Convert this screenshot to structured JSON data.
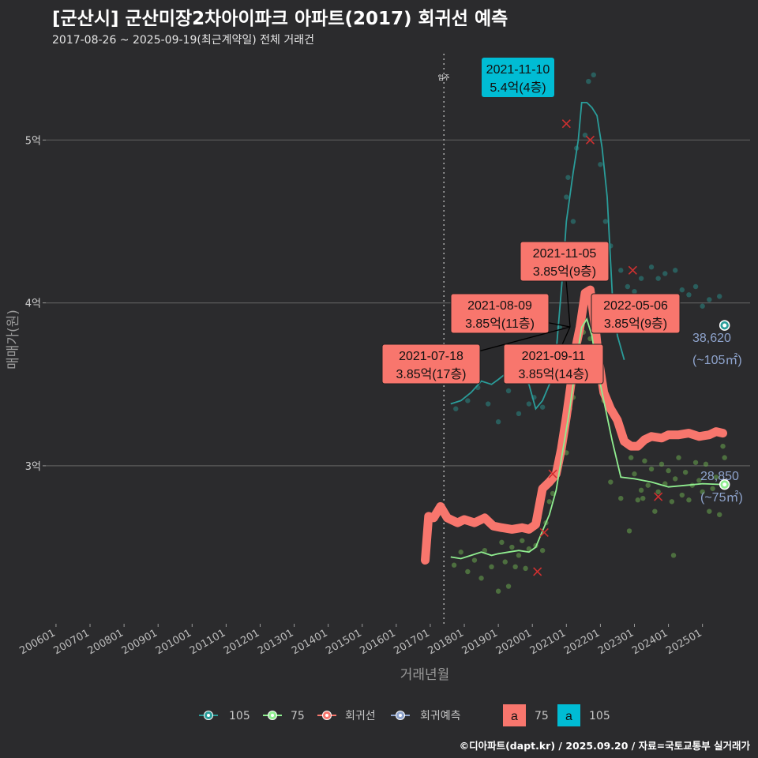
{
  "header": {
    "title": "[군산시] 군산미장2차아이파크 아파트(2017) 회귀선 예측",
    "subtitle": "2017-08-26 ~ 2025-09-19(최근계약일) 전체 거래건"
  },
  "caption": "©디아파트(dapt.kr) / 2025.09.20 / 자료=국토교통부 실거래가",
  "chart_data": {
    "type": "line",
    "title": "[군산시] 군산미장2차아이파크 아파트(2017) 회귀선 예측",
    "subtitle": "2017-08-26 ~ 2025-09-19(최근계약일) 전체 거래건",
    "xlabel": "거래년월",
    "ylabel": "매매가(원)",
    "x_range": [
      2005.7,
      2026.4
    ],
    "y_range": [
      20300,
      55300
    ],
    "y_ticks": [
      {
        "value": 30000,
        "label": "3억"
      },
      {
        "value": 40000,
        "label": "4억"
      },
      {
        "value": 50000,
        "label": "5억"
      }
    ],
    "x_ticks": [
      {
        "value": 2006.0,
        "label": "200601"
      },
      {
        "value": 2007.0,
        "label": "200701"
      },
      {
        "value": 2008.0,
        "label": "200801"
      },
      {
        "value": 2009.0,
        "label": "200901"
      },
      {
        "value": 2010.0,
        "label": "201001"
      },
      {
        "value": 2011.0,
        "label": "201101"
      },
      {
        "value": 2012.0,
        "label": "201201"
      },
      {
        "value": 2013.0,
        "label": "201301"
      },
      {
        "value": 2014.0,
        "label": "201401"
      },
      {
        "value": 2015.0,
        "label": "201501"
      },
      {
        "value": 2016.0,
        "label": "201601"
      },
      {
        "value": 2017.0,
        "label": "201701"
      },
      {
        "value": 2018.0,
        "label": "201801"
      },
      {
        "value": 2019.0,
        "label": "201901"
      },
      {
        "value": 2020.0,
        "label": "202001"
      },
      {
        "value": 2021.0,
        "label": "202101"
      },
      {
        "value": 2022.0,
        "label": "202201"
      },
      {
        "value": 2023.0,
        "label": "202301"
      },
      {
        "value": 2024.0,
        "label": "202401"
      },
      {
        "value": 2025.0,
        "label": "202501"
      }
    ],
    "vline": {
      "x": 2017.4,
      "label": "입주"
    },
    "grid": true,
    "legend_position": "bottom",
    "colors": {
      "105": "#2a9d9a",
      "75": "#90ee90",
      "regression": "#f8766d",
      "forecast": "#8ea3cc",
      "max_box": "#00bcd4",
      "bg": "#2b2b2d"
    },
    "legend": [
      {
        "key": "105",
        "label": "105",
        "color": "#2a9d9a"
      },
      {
        "key": "75",
        "label": "75",
        "color": "#90ee90"
      },
      {
        "key": "reg",
        "label": "회귀선",
        "color": "#f8766d"
      },
      {
        "key": "fc",
        "label": "회귀예측",
        "color": "#8ea3cc"
      }
    ],
    "legend_boxes": [
      {
        "letter": "a",
        "label": "75",
        "color": "#f8766d"
      },
      {
        "letter": "a",
        "label": "105",
        "color": "#00bcd4"
      }
    ],
    "series": [
      {
        "name": "105",
        "color": "#2a9d9a",
        "points": [
          [
            2017.6,
            33800
          ],
          [
            2017.9,
            34000
          ],
          [
            2018.2,
            34500
          ],
          [
            2018.5,
            35200
          ],
          [
            2018.8,
            35000
          ],
          [
            2019.0,
            35300
          ],
          [
            2019.3,
            35800
          ],
          [
            2019.6,
            35500
          ],
          [
            2019.9,
            35000
          ],
          [
            2020.1,
            33500
          ],
          [
            2020.3,
            34000
          ],
          [
            2020.5,
            35000
          ],
          [
            2020.7,
            37000
          ],
          [
            2020.9,
            42000
          ],
          [
            2021.0,
            45000
          ],
          [
            2021.2,
            48000
          ],
          [
            2021.35,
            50000
          ],
          [
            2021.45,
            52300
          ],
          [
            2021.6,
            52300
          ],
          [
            2021.75,
            52000
          ],
          [
            2021.9,
            51500
          ],
          [
            2022.05,
            49500
          ],
          [
            2022.2,
            46500
          ],
          [
            2022.35,
            40500
          ],
          [
            2022.5,
            38000
          ],
          [
            2022.7,
            36500
          ]
        ]
      },
      {
        "name": "75",
        "color": "#90ee90",
        "points": [
          [
            2017.6,
            24400
          ],
          [
            2017.9,
            24300
          ],
          [
            2018.2,
            24500
          ],
          [
            2018.5,
            24700
          ],
          [
            2018.8,
            24500
          ],
          [
            2019.0,
            24600
          ],
          [
            2019.3,
            24700
          ],
          [
            2019.6,
            24800
          ],
          [
            2019.9,
            24700
          ],
          [
            2020.1,
            25000
          ],
          [
            2020.3,
            26000
          ],
          [
            2020.5,
            27000
          ],
          [
            2020.7,
            28500
          ],
          [
            2020.9,
            31000
          ],
          [
            2021.1,
            33500
          ],
          [
            2021.3,
            36500
          ],
          [
            2021.45,
            38500
          ],
          [
            2021.6,
            39000
          ],
          [
            2021.75,
            38000
          ],
          [
            2021.9,
            36000
          ],
          [
            2022.1,
            34000
          ],
          [
            2022.35,
            31500
          ],
          [
            2022.6,
            29300
          ],
          [
            2023.0,
            29200
          ],
          [
            2023.5,
            29000
          ],
          [
            2024.0,
            28700
          ],
          [
            2024.5,
            28800
          ],
          [
            2025.0,
            28900
          ],
          [
            2025.6,
            28850
          ]
        ]
      },
      {
        "name": "회귀선",
        "color": "#f8766d",
        "points": [
          [
            2016.85,
            24200
          ],
          [
            2016.95,
            26900
          ],
          [
            2017.1,
            26800
          ],
          [
            2017.3,
            27500
          ],
          [
            2017.5,
            26800
          ],
          [
            2017.8,
            26500
          ],
          [
            2018.0,
            26700
          ],
          [
            2018.3,
            26500
          ],
          [
            2018.6,
            26800
          ],
          [
            2018.85,
            26300
          ],
          [
            2019.1,
            26200
          ],
          [
            2019.4,
            26100
          ],
          [
            2019.7,
            26200
          ],
          [
            2019.9,
            26100
          ],
          [
            2020.1,
            26400
          ],
          [
            2020.3,
            28600
          ],
          [
            2020.5,
            29000
          ],
          [
            2020.7,
            29500
          ],
          [
            2020.85,
            31000
          ],
          [
            2021.0,
            33000
          ],
          [
            2021.1,
            34500
          ],
          [
            2021.2,
            36000
          ],
          [
            2021.3,
            37500
          ],
          [
            2021.4,
            38500
          ],
          [
            2021.55,
            40600
          ],
          [
            2021.7,
            40800
          ],
          [
            2021.85,
            38500
          ],
          [
            2021.95,
            36500
          ],
          [
            2022.1,
            34500
          ],
          [
            2022.3,
            33500
          ],
          [
            2022.5,
            32800
          ],
          [
            2022.7,
            31500
          ],
          [
            2022.9,
            31200
          ],
          [
            2023.1,
            31200
          ],
          [
            2023.3,
            31600
          ],
          [
            2023.5,
            31800
          ],
          [
            2023.8,
            31700
          ],
          [
            2024.0,
            31900
          ],
          [
            2024.3,
            31900
          ],
          [
            2024.6,
            32000
          ],
          [
            2024.9,
            31800
          ],
          [
            2025.2,
            31900
          ],
          [
            2025.4,
            32100
          ],
          [
            2025.6,
            32000
          ]
        ]
      }
    ],
    "scatter_105": [
      [
        2017.75,
        33500
      ],
      [
        2018.1,
        34000
      ],
      [
        2018.4,
        34800
      ],
      [
        2018.7,
        33800
      ],
      [
        2019.0,
        32700
      ],
      [
        2019.3,
        34600
      ],
      [
        2019.6,
        33200
      ],
      [
        2019.9,
        33800
      ],
      [
        2020.05,
        34200
      ],
      [
        2020.3,
        33600
      ],
      [
        2020.5,
        35500
      ],
      [
        2020.8,
        38500
      ],
      [
        2020.9,
        41500
      ],
      [
        2020.95,
        43000
      ],
      [
        2021.0,
        46500
      ],
      [
        2021.05,
        47700
      ],
      [
        2021.2,
        45000
      ],
      [
        2021.3,
        49500
      ],
      [
        2021.55,
        50300
      ],
      [
        2021.65,
        53600
      ],
      [
        2021.8,
        54000
      ],
      [
        2022.0,
        48500
      ],
      [
        2022.15,
        45000
      ],
      [
        2022.3,
        43500
      ],
      [
        2022.6,
        42000
      ],
      [
        2022.8,
        41000
      ],
      [
        2023.0,
        40700
      ],
      [
        2023.2,
        41500
      ],
      [
        2023.5,
        42200
      ],
      [
        2023.7,
        41500
      ],
      [
        2023.9,
        41800
      ],
      [
        2024.2,
        42000
      ],
      [
        2024.4,
        40800
      ],
      [
        2024.6,
        40500
      ],
      [
        2024.8,
        41000
      ],
      [
        2025.0,
        39800
      ],
      [
        2025.2,
        40200
      ],
      [
        2025.5,
        40400
      ],
      [
        2023.3,
        39500
      ],
      [
        2024.1,
        39200
      ]
    ],
    "scatter_75": [
      [
        2017.7,
        23900
      ],
      [
        2017.9,
        24700
      ],
      [
        2018.1,
        23500
      ],
      [
        2018.3,
        24200
      ],
      [
        2018.5,
        23100
      ],
      [
        2018.6,
        24800
      ],
      [
        2018.8,
        23800
      ],
      [
        2019.0,
        22300
      ],
      [
        2019.1,
        25300
      ],
      [
        2019.2,
        24100
      ],
      [
        2019.3,
        22600
      ],
      [
        2019.4,
        25000
      ],
      [
        2019.5,
        23800
      ],
      [
        2019.6,
        24500
      ],
      [
        2019.7,
        25400
      ],
      [
        2019.8,
        23700
      ],
      [
        2019.9,
        24900
      ],
      [
        2020.0,
        26200
      ],
      [
        2020.1,
        25100
      ],
      [
        2020.2,
        26800
      ],
      [
        2020.3,
        24800
      ],
      [
        2020.4,
        26500
      ],
      [
        2020.5,
        27800
      ],
      [
        2020.6,
        28300
      ],
      [
        2020.7,
        29600
      ],
      [
        2020.8,
        30200
      ],
      [
        2020.9,
        31500
      ],
      [
        2021.0,
        30800
      ],
      [
        2021.1,
        33500
      ],
      [
        2021.2,
        34200
      ],
      [
        2021.3,
        35500
      ],
      [
        2021.5,
        38200
      ],
      [
        2021.7,
        37800
      ],
      [
        2021.9,
        37500
      ],
      [
        2022.1,
        34000
      ],
      [
        2022.3,
        29000
      ],
      [
        2022.6,
        28000
      ],
      [
        2022.9,
        30500
      ],
      [
        2023.0,
        29500
      ],
      [
        2023.1,
        27900
      ],
      [
        2023.2,
        28500
      ],
      [
        2023.3,
        30300
      ],
      [
        2023.4,
        28800
      ],
      [
        2023.5,
        29800
      ],
      [
        2023.6,
        27200
      ],
      [
        2023.7,
        28400
      ],
      [
        2023.8,
        30100
      ],
      [
        2023.9,
        28900
      ],
      [
        2024.0,
        29700
      ],
      [
        2024.1,
        27800
      ],
      [
        2024.2,
        29200
      ],
      [
        2024.3,
        30500
      ],
      [
        2024.4,
        28200
      ],
      [
        2024.5,
        29600
      ],
      [
        2024.6,
        27900
      ],
      [
        2024.7,
        28800
      ],
      [
        2024.8,
        30200
      ],
      [
        2024.9,
        29100
      ],
      [
        2025.0,
        28400
      ],
      [
        2025.1,
        30100
      ],
      [
        2025.2,
        27200
      ],
      [
        2025.3,
        28600
      ],
      [
        2025.4,
        29300
      ],
      [
        2025.5,
        27000
      ],
      [
        2025.6,
        31200
      ],
      [
        2025.65,
        30500
      ],
      [
        2024.15,
        24500
      ],
      [
        2022.85,
        26000
      ],
      [
        2023.25,
        28000
      ]
    ],
    "red_x": [
      [
        2021.0,
        51000
      ],
      [
        2021.7,
        50000
      ],
      [
        2022.95,
        42000
      ],
      [
        2020.15,
        23500
      ],
      [
        2020.35,
        25900
      ],
      [
        2020.6,
        29500
      ],
      [
        2023.7,
        28100
      ]
    ],
    "labels": [
      {
        "date": "2021-11-10",
        "value": "5.4억(4층)",
        "color": "#00bcd4",
        "x": 2021.86,
        "y": 54000,
        "box": "max"
      },
      {
        "date": "2021-11-05",
        "value": "3.85억(9층)",
        "color": "#f8766d",
        "x": 2021.85,
        "y": 38500
      },
      {
        "date": "2021-08-09",
        "value": "3.85억(11층)",
        "color": "#f8766d",
        "x": 2021.6,
        "y": 38500
      },
      {
        "date": "2022-05-06",
        "value": "3.85억(9층)",
        "color": "#f8766d",
        "x": 2022.35,
        "y": 38500
      },
      {
        "date": "2021-07-18",
        "value": "3.85억(17층)",
        "color": "#f8766d",
        "x": 2021.54,
        "y": 38500
      },
      {
        "date": "2021-09-11",
        "value": "3.85억(14층)",
        "color": "#f8766d",
        "x": 2021.69,
        "y": 38500
      }
    ],
    "end_points": [
      {
        "series": "105",
        "value": "38,620",
        "area": "(~105㎡)",
        "x": 2025.65,
        "y": 38620,
        "color": "#2a9d9a",
        "text_color": "#8ea3cc"
      },
      {
        "series": "75",
        "value": "28,850",
        "area": "(~75㎡)",
        "x": 2025.65,
        "y": 28850,
        "color": "#90ee90",
        "text_color": "#8ea3cc"
      }
    ]
  }
}
